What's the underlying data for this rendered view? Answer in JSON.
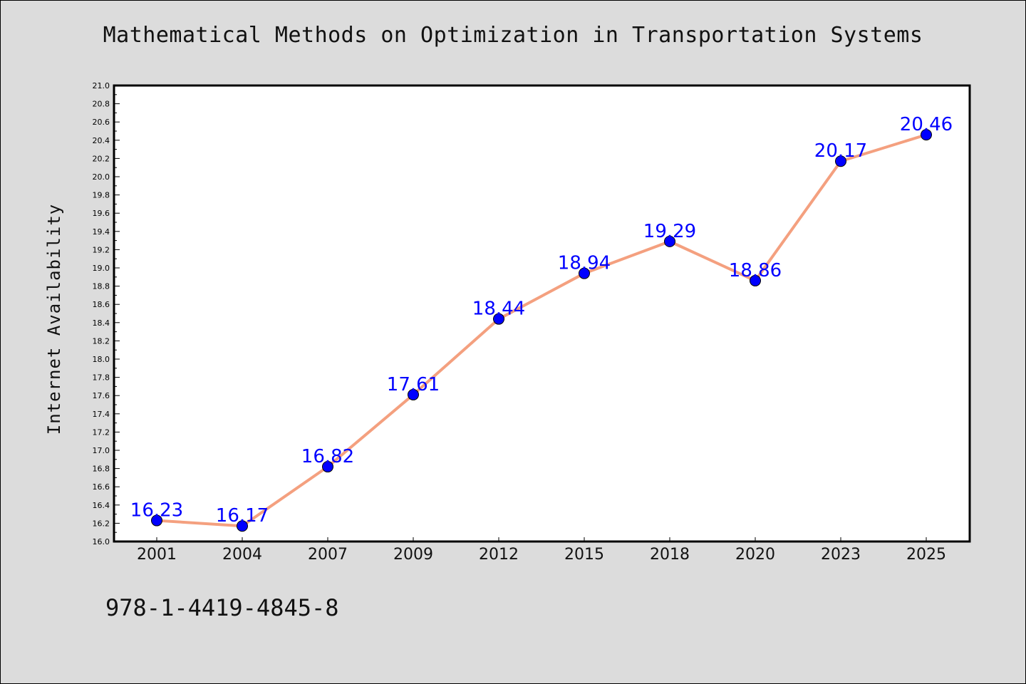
{
  "title": "Mathematical Methods on Optimization in Transportation Systems",
  "footer_code": "978-1-4419-4845-8",
  "colors": {
    "background": "#dcdcdc",
    "plot_background": "#ffffff",
    "line": "#f4a07f",
    "marker": "#0000ff",
    "label": "#0000ff"
  },
  "chart_data": {
    "type": "line",
    "title": "Mathematical Methods on Optimization in Transportation Systems",
    "xlabel": "",
    "ylabel": "Internet Availability",
    "categories": [
      "2001",
      "2004",
      "2007",
      "2009",
      "2012",
      "2015",
      "2018",
      "2020",
      "2023",
      "2025"
    ],
    "values": [
      16.23,
      16.17,
      16.82,
      17.61,
      18.44,
      18.94,
      19.29,
      18.86,
      20.17,
      20.46
    ],
    "data_labels": [
      "16.23",
      "16.17",
      "16.82",
      "17.61",
      "18.44",
      "18.94",
      "19.29",
      "18.86",
      "20.17",
      "20.46"
    ],
    "ylim": [
      16.0,
      21.0
    ],
    "yticks": [
      "16.0",
      "16.2",
      "16.4",
      "16.6",
      "16.8",
      "17.0",
      "17.2",
      "17.4",
      "17.6",
      "17.8",
      "18.0",
      "18.2",
      "18.4",
      "18.6",
      "18.8",
      "19.0",
      "19.2",
      "19.4",
      "19.6",
      "19.8",
      "20.0",
      "20.2",
      "20.4",
      "20.6",
      "20.8",
      "21.0"
    ],
    "grid": false,
    "legend": "none",
    "markers": true
  }
}
